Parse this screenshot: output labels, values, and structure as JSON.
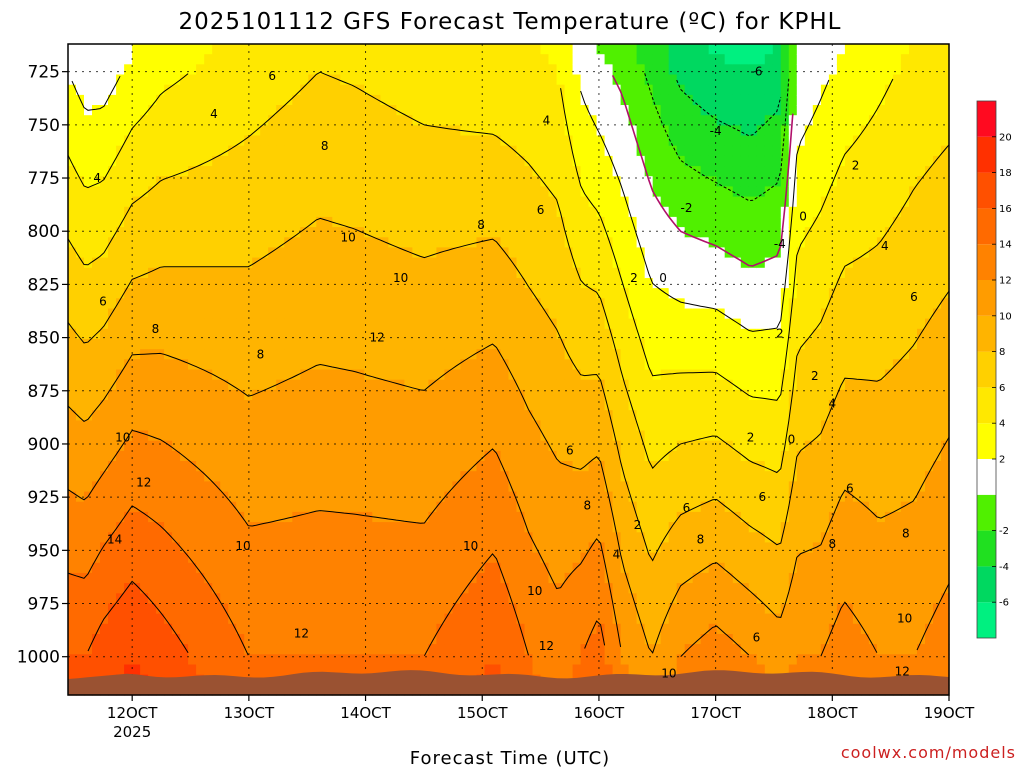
{
  "page": {
    "title": "2025101112 GFS Forecast Temperature (ºC) for KPHL",
    "watermark": "coolwx.com/models"
  },
  "chart_data": {
    "type": "heatmap",
    "title": "2025101112 GFS Forecast Temperature (ºC) for KPHL",
    "xlabel": "Forecast Time (UTC)",
    "ylabel": "",
    "x_axis": {
      "ticks": [
        {
          "day": 12,
          "label": "12OCT",
          "sublabel": "2025"
        },
        {
          "day": 13,
          "label": "13OCT"
        },
        {
          "day": 14,
          "label": "14OCT"
        },
        {
          "day": 15,
          "label": "15OCT"
        },
        {
          "day": 16,
          "label": "16OCT"
        },
        {
          "day": 17,
          "label": "17OCT"
        },
        {
          "day": 18,
          "label": "18OCT"
        },
        {
          "day": 19,
          "label": "19OCT"
        }
      ],
      "range_days": [
        11.45,
        19.0
      ]
    },
    "y_axis": {
      "scale": "pressure_hPa",
      "ticks": [
        725,
        750,
        775,
        800,
        825,
        850,
        875,
        900,
        925,
        950,
        975,
        1000
      ],
      "range": [
        712,
        1018
      ]
    },
    "grid": true,
    "colorbar": {
      "levels": [
        -8,
        -6,
        -4,
        -2,
        0,
        2,
        4,
        6,
        8,
        10,
        12,
        14,
        16,
        18,
        20,
        22
      ],
      "colors": [
        "#00f080",
        "#00d860",
        "#20e020",
        "#50f000",
        "#ffffff",
        "#ffff00",
        "#ffe800",
        "#ffd000",
        "#ffb400",
        "#ff9c00",
        "#ff8200",
        "#ff6a00",
        "#ff5000",
        "#ff3000",
        "#ff0a20"
      ],
      "tick_labels": [
        "-6",
        "-4",
        "-2",
        "2",
        "4",
        "6",
        "8",
        "10",
        "12",
        "14",
        "16",
        "18",
        "20"
      ],
      "tick_values": [
        -6,
        -4,
        -2,
        2,
        4,
        6,
        8,
        10,
        12,
        14,
        16,
        18,
        20
      ]
    },
    "field": {
      "columns": [
        {
          "day": 11.45,
          "t725": 2,
          "t1000": 16
        },
        {
          "day": 11.6,
          "t725": 1,
          "t1000": 16
        },
        {
          "day": 11.75,
          "t725": 1,
          "t1000": 17
        },
        {
          "day": 12.0,
          "t725": 2.5,
          "t1000": 18
        },
        {
          "day": 12.25,
          "t725": 3.5,
          "t1000": 17
        },
        {
          "day": 12.5,
          "t725": 4,
          "t1000": 16
        },
        {
          "day": 12.75,
          "t725": 4.5,
          "t1000": 15
        },
        {
          "day": 13.0,
          "t725": 5,
          "t1000": 14
        },
        {
          "day": 13.3,
          "t725": 5.5,
          "t1000": 14
        },
        {
          "day": 13.6,
          "t725": 6,
          "t1000": 14
        },
        {
          "day": 13.9,
          "t725": 5.8,
          "t1000": 14
        },
        {
          "day": 14.2,
          "t725": 5.5,
          "t1000": 14
        },
        {
          "day": 14.5,
          "t725": 5.2,
          "t1000": 14
        },
        {
          "day": 14.8,
          "t725": 5,
          "t1000": 15
        },
        {
          "day": 15.1,
          "t725": 4.8,
          "t1000": 16
        },
        {
          "day": 15.4,
          "t725": 4.5,
          "t1000": 14
        },
        {
          "day": 15.65,
          "t725": 4,
          "t1000": 13
        },
        {
          "day": 15.85,
          "t725": 1.5,
          "t1000": 14
        },
        {
          "day": 16.0,
          "t725": 0.5,
          "t1000": 15
        },
        {
          "day": 16.2,
          "t725": -0.5,
          "t1000": 12
        },
        {
          "day": 16.45,
          "t725": -2.5,
          "t1000": 10
        },
        {
          "day": 16.7,
          "t725": -4.5,
          "t1000": 12
        },
        {
          "day": 17.0,
          "t725": -5.5,
          "t1000": 13
        },
        {
          "day": 17.3,
          "t725": -6,
          "t1000": 12
        },
        {
          "day": 17.55,
          "t725": -5,
          "t1000": 11
        },
        {
          "day": 17.7,
          "t725": 0.5,
          "t1000": 12
        },
        {
          "day": 17.9,
          "t725": 1.5,
          "t1000": 12
        },
        {
          "day": 18.1,
          "t725": 2.5,
          "t1000": 13
        },
        {
          "day": 18.4,
          "t725": 3.5,
          "t1000": 12
        },
        {
          "day": 18.7,
          "t725": 4.5,
          "t1000": 12
        },
        {
          "day": 19.0,
          "t725": 5,
          "t1000": 13
        }
      ]
    },
    "contour_labels": [
      {
        "text": "6",
        "day": 13.2,
        "p": 727
      },
      {
        "text": "4",
        "day": 12.7,
        "p": 745
      },
      {
        "text": "4",
        "day": 15.55,
        "p": 748
      },
      {
        "text": "4",
        "day": 11.7,
        "p": 775
      },
      {
        "text": "8",
        "day": 13.65,
        "p": 760
      },
      {
        "text": "6",
        "day": 15.5,
        "p": 790
      },
      {
        "text": "8",
        "day": 14.99,
        "p": 797
      },
      {
        "text": "10",
        "day": 13.85,
        "p": 803
      },
      {
        "text": "10",
        "day": 14.3,
        "p": 822
      },
      {
        "text": "6",
        "day": 11.75,
        "p": 833
      },
      {
        "text": "8",
        "day": 12.2,
        "p": 846
      },
      {
        "text": "12",
        "day": 14.1,
        "p": 850
      },
      {
        "text": "8",
        "day": 13.1,
        "p": 858
      },
      {
        "text": "10",
        "day": 11.92,
        "p": 897
      },
      {
        "text": "12",
        "day": 12.1,
        "p": 918
      },
      {
        "text": "14",
        "day": 11.85,
        "p": 945
      },
      {
        "text": "10",
        "day": 12.95,
        "p": 948
      },
      {
        "text": "12",
        "day": 13.45,
        "p": 989
      },
      {
        "text": "10",
        "day": 14.9,
        "p": 948
      },
      {
        "text": "10",
        "day": 15.45,
        "p": 969
      },
      {
        "text": "12",
        "day": 15.55,
        "p": 995
      },
      {
        "text": "6",
        "day": 15.75,
        "p": 903
      },
      {
        "text": "8",
        "day": 15.9,
        "p": 929
      },
      {
        "text": "4",
        "day": 16.15,
        "p": 952
      },
      {
        "text": "2",
        "day": 16.33,
        "p": 938
      },
      {
        "text": "2",
        "day": 16.3,
        "p": 822
      },
      {
        "text": "0",
        "day": 16.55,
        "p": 822
      },
      {
        "text": "-6",
        "day": 17.35,
        "p": 725
      },
      {
        "text": "-4",
        "day": 17.0,
        "p": 753
      },
      {
        "text": "-2",
        "day": 16.75,
        "p": 789
      },
      {
        "text": "-4",
        "day": 17.55,
        "p": 806
      },
      {
        "text": "0",
        "day": 17.75,
        "p": 793
      },
      {
        "text": "2",
        "day": 17.55,
        "p": 848
      },
      {
        "text": "2",
        "day": 17.85,
        "p": 868
      },
      {
        "text": "4",
        "day": 18.0,
        "p": 881
      },
      {
        "text": "2",
        "day": 17.3,
        "p": 897
      },
      {
        "text": "0",
        "day": 17.65,
        "p": 898
      },
      {
        "text": "2",
        "day": 18.2,
        "p": 769
      },
      {
        "text": "4",
        "day": 18.45,
        "p": 807
      },
      {
        "text": "6",
        "day": 18.7,
        "p": 831
      },
      {
        "text": "6",
        "day": 17.4,
        "p": 925
      },
      {
        "text": "6",
        "day": 16.75,
        "p": 930
      },
      {
        "text": "8",
        "day": 16.87,
        "p": 945
      },
      {
        "text": "6",
        "day": 18.15,
        "p": 921
      },
      {
        "text": "8",
        "day": 18.0,
        "p": 947
      },
      {
        "text": "8",
        "day": 18.63,
        "p": 942
      },
      {
        "text": "10",
        "day": 18.62,
        "p": 982
      },
      {
        "text": "6",
        "day": 17.35,
        "p": 991
      },
      {
        "text": "10",
        "day": 16.6,
        "p": 1008
      },
      {
        "text": "12",
        "day": 18.6,
        "p": 1007
      }
    ]
  }
}
